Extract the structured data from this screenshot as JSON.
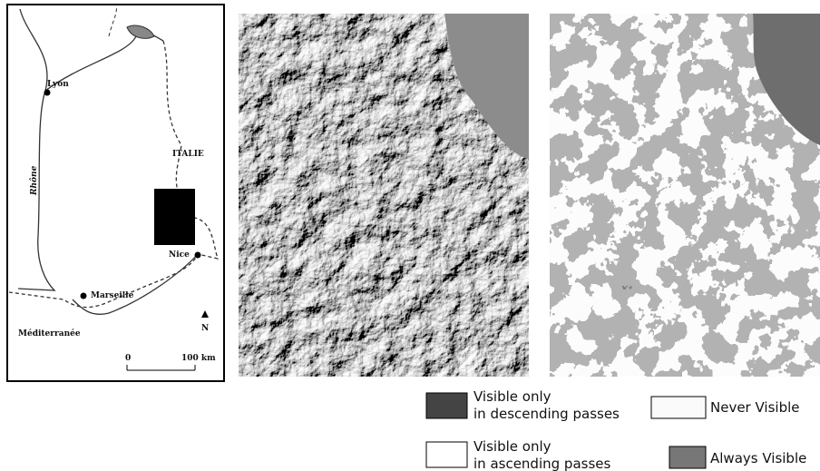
{
  "inset_map": {
    "labels": {
      "city_lyon": "Lyon",
      "river": "Rhône",
      "country": "ITALIE",
      "city_nice": "Nice",
      "city_marseille": "Marseille",
      "sea": "Méditerranée",
      "north": "N",
      "scale_start": "0",
      "scale_end": "100 km"
    }
  },
  "legend": {
    "items": [
      {
        "lines": [
          "Visible only",
          "in descending passes"
        ]
      },
      {
        "lines": [
          "Never Visible"
        ]
      },
      {
        "lines": [
          "Visible only",
          "in ascending passes"
        ]
      },
      {
        "lines": [
          "Always Visible"
        ]
      }
    ]
  }
}
